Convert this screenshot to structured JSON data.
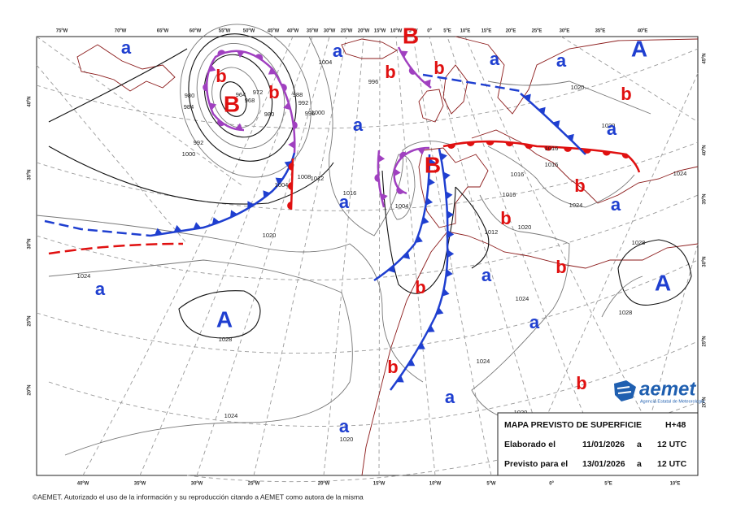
{
  "map": {
    "top_labels": [
      "75ºW",
      "70ºW",
      "65ºW",
      "60ºW",
      "55ºW",
      "50ºW",
      "45ºW",
      "40ºW",
      "35ºW",
      "30ºW",
      "25ºW",
      "20ºW",
      "15ºW",
      "10ºW",
      "5ºW",
      "0º",
      "5ºE",
      "10ºE",
      "15ºE",
      "20ºE",
      "25ºE",
      "30ºE",
      "35ºE",
      "40ºE"
    ],
    "bottom_labels": [
      "40ºW",
      "35ºW",
      "30ºW",
      "25ºW",
      "20ºW",
      "15ºW",
      "10ºW",
      "5ºW",
      "0º",
      "5ºE",
      "10ºE"
    ],
    "left_labels": [
      "40ºN",
      "35ºN",
      "30ºN",
      "25ºN",
      "20ºN"
    ],
    "right_labels": [
      "45ºN",
      "40ºN",
      "35ºN",
      "30ºN",
      "25ºN",
      "20ºN"
    ],
    "high_centers": [
      "A",
      "A",
      "A"
    ],
    "low_centers": [
      "B",
      "B",
      "B"
    ],
    "weak_highs": [
      "a",
      "a",
      "a",
      "a",
      "a",
      "a",
      "a",
      "a",
      "a",
      "a",
      "a",
      "a",
      "a"
    ],
    "weak_lows": [
      "b",
      "b",
      "b",
      "b",
      "b",
      "b",
      "b",
      "b",
      "b",
      "b",
      "b"
    ],
    "isobar_labels": [
      "1004",
      "996",
      "980",
      "984",
      "964",
      "972",
      "968",
      "988",
      "992",
      "980",
      "996",
      "1000",
      "992",
      "1000",
      "1012",
      "1008",
      "1004",
      "1016",
      "1004",
      "1020",
      "1024",
      "1028",
      "1028",
      "1028",
      "1016",
      "1016",
      "1016",
      "1016",
      "1024",
      "1020",
      "1012",
      "1024",
      "1024",
      "1020",
      "1024",
      "1020",
      "1024",
      "1020",
      "1020"
    ]
  },
  "info_box": {
    "title": "MAPA PREVISTO DE SUPERFICIE",
    "lead_time": "H+48",
    "rows": [
      [
        "Elaborado el",
        "11/01/2026",
        "a",
        "12 UTC"
      ],
      [
        "Previsto para el",
        "13/01/2026",
        "a",
        "12 UTC"
      ]
    ]
  },
  "logo": {
    "name": "aemet",
    "subtitle": "Agencia Estatal de Meteorología"
  },
  "footer": "©AEMET. Autorizado el uso de la información y su reproducción citando a AEMET como autora de la misma"
}
